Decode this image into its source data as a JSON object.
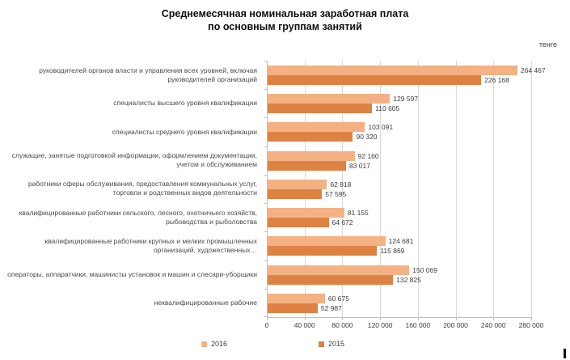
{
  "title_lines": [
    "Среднемесячная номинальная заработная плата",
    "по основным группам занятий"
  ],
  "unit_label": "тенге",
  "chart_data": {
    "type": "bar",
    "orientation": "horizontal",
    "title": "Среднемесячная номинальная заработная плата по основным группам занятий",
    "xlabel": "тенге",
    "ylabel": "",
    "xlim": [
      0,
      280000
    ],
    "grid": true,
    "legend_position": "bottom",
    "categories": [
      "руководителей органов власти и управления всех уровней, включая руководителей организаций",
      "специалисты высшего уровня квалификации",
      "специалисты среднего уровня квалификации",
      "служащие, занятые подготовкой информации, оформлением документации, учетом и обслуживанием",
      "работники сферы обслуживания, предоставления коммунальных услуг, торговли и родственных видов деятельности",
      "квалифицированные работники сельского, лесного, охотничьего хозяйств, рыбоводства и рыболовства",
      "квалифицированные работники крупных и мелких промышленных организаций, художественных…",
      "операторы, аппаратчики, машинисты установок и машин и слесари-уборщики",
      "неквалифицированные рабочие"
    ],
    "series": [
      {
        "name": "2016",
        "color": "#F4B183",
        "values": [
          264467,
          129597,
          103091,
          92160,
          62818,
          81155,
          124681,
          150069,
          60675
        ]
      },
      {
        "name": "2015",
        "color": "#DE8244",
        "values": [
          226168,
          110605,
          90320,
          83017,
          57595,
          64672,
          115869,
          132825,
          52987
        ]
      }
    ],
    "x_ticks": [
      "0",
      "40 000",
      "80 000",
      "120 000",
      "160 000",
      "200 000",
      "240 000",
      "280 000"
    ]
  }
}
